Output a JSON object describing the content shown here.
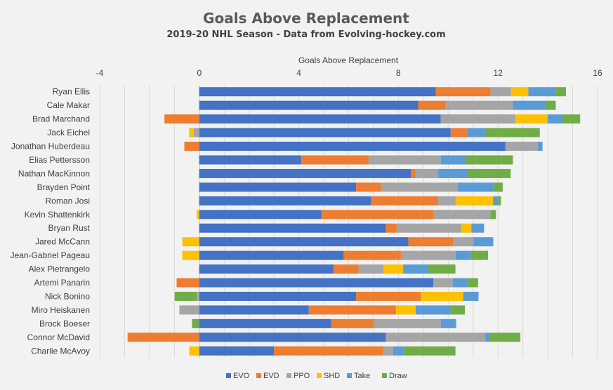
{
  "chart_data": {
    "type": "bar",
    "orientation": "horizontal",
    "stacked": true,
    "title": "Goals Above Replacement",
    "subtitle": "2019-20 NHL Season - Data from Evolving-hockey.com",
    "xlabel": "Goals Above Replacement",
    "ylabel": "",
    "xlim": [
      -4,
      16
    ],
    "xticks": [
      -4,
      0,
      4,
      8,
      12,
      16
    ],
    "grid": true,
    "legend_position": "bottom",
    "categories": [
      "Ryan Ellis",
      "Cale Makar",
      "Brad Marchand",
      "Jack Eichel",
      "Jonathan Huberdeau",
      "Elias Pettersson",
      "Nathan MacKinnon",
      "Brayden Point",
      "Roman Josi",
      "Kevin Shattenkirk",
      "Bryan Rust",
      "Jared McCann",
      "Jean-Gabriel Pageau",
      "Alex Pietrangelo",
      "Artemi Panarin",
      "Nick Bonino",
      "Miro Heiskanen",
      "Brock Boeser",
      "Connor McDavid",
      "Charlie McAvoy"
    ],
    "series": [
      {
        "name": "EVO",
        "color": "#4472C4",
        "values": [
          9.5,
          8.8,
          9.7,
          10.1,
          12.3,
          4.1,
          8.5,
          6.3,
          6.9,
          4.9,
          7.5,
          8.4,
          5.8,
          5.4,
          9.4,
          6.3,
          4.4,
          5.3,
          7.5,
          3.0
        ]
      },
      {
        "name": "EVD",
        "color": "#ED7D31",
        "values": [
          2.2,
          1.1,
          -1.4,
          0.67,
          -0.6,
          2.7,
          0.19,
          1.0,
          2.7,
          4.5,
          0.43,
          1.8,
          2.3,
          1.0,
          -0.91,
          2.6,
          3.5,
          1.7,
          -2.88,
          4.4
        ]
      },
      {
        "name": "PPO",
        "color": "#A5A5A5",
        "values": [
          0.82,
          2.7,
          3.0,
          -0.22,
          1.3,
          2.9,
          0.91,
          3.1,
          0.7,
          2.3,
          2.6,
          0.82,
          2.2,
          1.0,
          0.78,
          -0.1,
          -0.8,
          2.7,
          4.0,
          0.39
        ]
      },
      {
        "name": "SHD",
        "color": "#FFC000",
        "values": [
          0.7,
          0,
          1.3,
          -0.19,
          0,
          0,
          0,
          0,
          1.5,
          -0.1,
          0.4,
          -0.68,
          -0.68,
          0.79,
          0,
          1.7,
          0.79,
          0,
          0,
          -0.4
        ]
      },
      {
        "name": "Take",
        "color": "#5B9BD5",
        "values": [
          1.1,
          1.3,
          0.59,
          0.71,
          0.19,
          1.0,
          1.18,
          1.4,
          0.2,
          0,
          0.51,
          0.79,
          0.6,
          1.0,
          0.6,
          0.62,
          1.4,
          0.62,
          0.18,
          0.4
        ]
      },
      {
        "name": "Draw",
        "color": "#70AD47",
        "values": [
          0.41,
          0.42,
          0.71,
          2.2,
          0,
          1.9,
          1.73,
          0.39,
          0.12,
          0.22,
          0,
          0,
          0.7,
          1.1,
          0.42,
          -0.89,
          0.58,
          -0.29,
          1.22,
          2.1
        ]
      }
    ]
  },
  "colors": {
    "background": "#F2F2F2",
    "grid": "#D9D9D9",
    "text": "#404040"
  }
}
